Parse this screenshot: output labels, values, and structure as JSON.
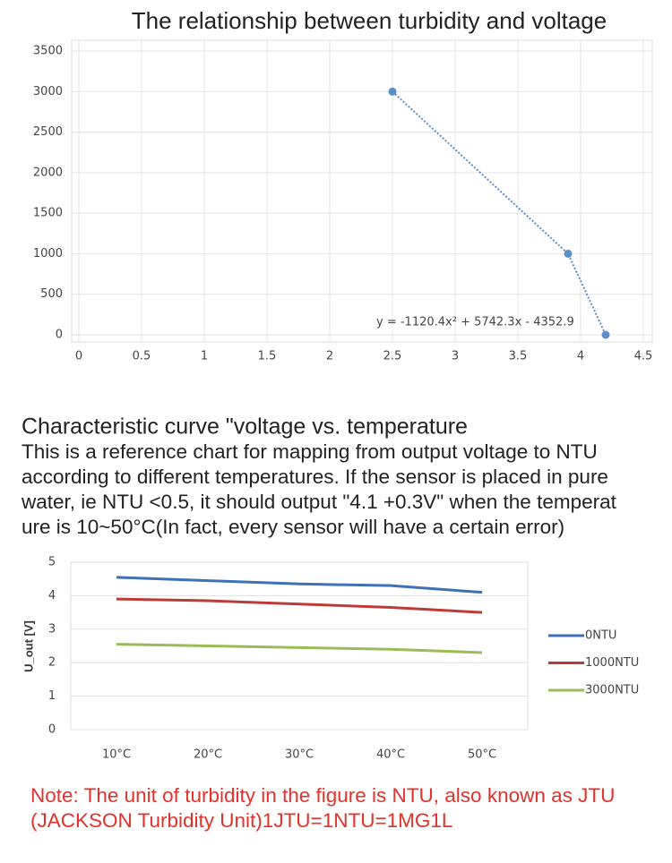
{
  "chart_data": [
    {
      "type": "scatter",
      "title": "The relationship between turbidity and voltage",
      "x": [
        2.5,
        3.9,
        4.2
      ],
      "values": [
        3000,
        1000,
        0
      ],
      "color": "#5b8fc7",
      "trendline": true,
      "annotation": "y = -1120.4x² + 5742.3x - 4352.9",
      "xlim": [
        0,
        4.5
      ],
      "xticks": [
        0,
        0.5,
        1,
        1.5,
        2,
        2.5,
        3,
        3.5,
        4,
        4.5
      ],
      "ylim": [
        0,
        3500
      ],
      "yticks": [
        0,
        500,
        1000,
        1500,
        2000,
        2500,
        3000,
        3500
      ],
      "grid": true
    },
    {
      "type": "line",
      "title": "Characteristic curve \"voltage vs. temperature",
      "description": [
        "This is a reference chart for mapping from output voltage to NTU",
        "according to different temperatures. If the sensor is placed in pure",
        "water, ie NTU <0.5, it should output \"4.1 +0.3V\" when the temperat",
        "ure is 10~50°C(In fact, every sensor will have a certain error)"
      ],
      "categories": [
        "10°C",
        "20°C",
        "30°C",
        "40°C",
        "50°C"
      ],
      "series": [
        {
          "name": "0NTU",
          "color": "#3d70b5",
          "values": [
            4.55,
            4.45,
            4.35,
            4.3,
            4.1
          ]
        },
        {
          "name": "1000NTU",
          "color": "#be3a36",
          "values": [
            3.9,
            3.85,
            3.75,
            3.65,
            3.5
          ]
        },
        {
          "name": "3000NTU",
          "color": "#9bbb59",
          "values": [
            2.55,
            2.5,
            2.45,
            2.4,
            2.3
          ]
        }
      ],
      "ylabel": "U_out [V]",
      "ylim": [
        0,
        5
      ],
      "yticks": [
        0,
        1,
        2,
        3,
        4,
        5
      ],
      "grid": true,
      "legend": "right",
      "note": [
        "Note: The unit of turbidity in the figure is NTU, also known as JTU",
        " (JACKSON Turbidity Unit)1JTU=1NTU=1MG1L"
      ]
    }
  ]
}
